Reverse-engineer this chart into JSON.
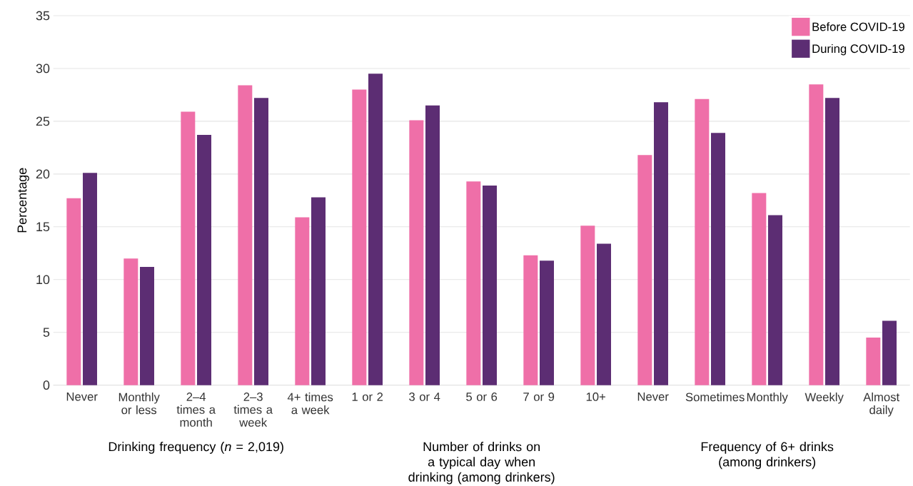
{
  "chart_data": {
    "type": "bar",
    "categories": [
      "Never",
      "Monthly or less",
      "2–4 times a month",
      "2–3 times a week",
      "4+ times a week",
      "1 or 2",
      "3 or 4",
      "5 or 6",
      "7 or 9",
      "10+",
      "Never",
      "Sometimes",
      "Monthly",
      "Weekly",
      "Almost daily"
    ],
    "series": [
      {
        "name": "Before COVID-19",
        "color": "#ef6fa8",
        "values": [
          17.7,
          12.0,
          25.9,
          28.4,
          15.9,
          28.0,
          25.1,
          19.3,
          12.3,
          15.1,
          21.8,
          27.1,
          18.2,
          28.5,
          4.5
        ]
      },
      {
        "name": "During COVID-19",
        "color": "#5c2d73",
        "values": [
          20.1,
          11.2,
          23.7,
          27.2,
          17.8,
          29.5,
          26.5,
          18.9,
          11.8,
          13.4,
          26.8,
          23.9,
          16.1,
          27.2,
          6.1
        ]
      }
    ],
    "ylabel": "Percentage",
    "ylim": [
      0,
      35
    ],
    "yticks": [
      0,
      5,
      10,
      15,
      20,
      25,
      30,
      35
    ],
    "grid": "y",
    "legend": "top right",
    "annotations": [
      "Drinking frequency (*n* = 2,019)",
      "Number of drinks on a typical day when drinking (among drinkers)",
      "Frequency of 6+ drinks (among drinkers)"
    ]
  }
}
